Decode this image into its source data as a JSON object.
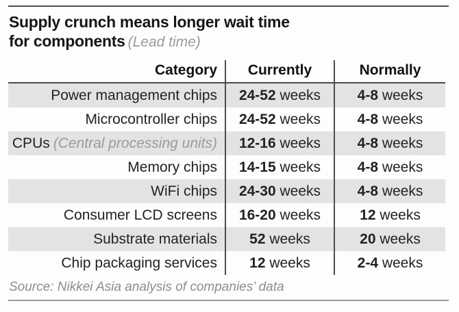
{
  "header": {
    "title_line1": "Supply crunch means longer wait time",
    "title_line2": "for components",
    "subtitle": "(Lead time)"
  },
  "table": {
    "columns": {
      "category": "Category",
      "currently": "Currently",
      "normally": "Normally"
    },
    "rows": [
      {
        "category": "Power management chips",
        "note": "",
        "currently": {
          "value": "24-52",
          "unit": "weeks"
        },
        "normally": {
          "value": "4-8",
          "unit": "weeks"
        }
      },
      {
        "category": "Microcontroller chips",
        "note": "",
        "currently": {
          "value": "24-52",
          "unit": "weeks"
        },
        "normally": {
          "value": "4-8",
          "unit": "weeks"
        }
      },
      {
        "category": "CPUs",
        "note": "(Central processing units)",
        "currently": {
          "value": "12-16",
          "unit": "weeks"
        },
        "normally": {
          "value": "4-8",
          "unit": "weeks"
        }
      },
      {
        "category": "Memory chips",
        "note": "",
        "currently": {
          "value": "14-15",
          "unit": "weeks"
        },
        "normally": {
          "value": "4-8",
          "unit": "weeks"
        }
      },
      {
        "category": "WiFi chips",
        "note": "",
        "currently": {
          "value": "24-30",
          "unit": "weeks"
        },
        "normally": {
          "value": "4-8",
          "unit": "weeks"
        }
      },
      {
        "category": "Consumer LCD screens",
        "note": "",
        "currently": {
          "value": "16-20",
          "unit": "weeks"
        },
        "normally": {
          "value": "12",
          "unit": "weeks"
        }
      },
      {
        "category": "Substrate materials",
        "note": "",
        "currently": {
          "value": "52",
          "unit": "weeks"
        },
        "normally": {
          "value": "20",
          "unit": "weeks"
        }
      },
      {
        "category": "Chip packaging services",
        "note": "",
        "currently": {
          "value": "12",
          "unit": "weeks"
        },
        "normally": {
          "value": "2-4",
          "unit": "weeks"
        }
      }
    ]
  },
  "footer": {
    "source": "Source: Nikkei Asia analysis of companies’ data"
  },
  "colors": {
    "row_shade": "#e3e3e3",
    "text_dark": "#1c1c1c",
    "text_muted": "#9a9a9a",
    "rule_dark": "#4c4c4c",
    "rule_light": "#9b9b9b"
  },
  "chart_data": {
    "type": "table",
    "title": "Supply crunch means longer wait time for components",
    "subtitle": "(Lead time)",
    "columns": [
      "Category",
      "Currently",
      "Normally"
    ],
    "rows": [
      [
        "Power management chips",
        "24-52 weeks",
        "4-8 weeks"
      ],
      [
        "Microcontroller chips",
        "24-52 weeks",
        "4-8 weeks"
      ],
      [
        "CPUs (Central processing units)",
        "12-16 weeks",
        "4-8 weeks"
      ],
      [
        "Memory chips",
        "14-15 weeks",
        "4-8 weeks"
      ],
      [
        "WiFi chips",
        "24-30 weeks",
        "4-8 weeks"
      ],
      [
        "Consumer LCD screens",
        "16-20 weeks",
        "12 weeks"
      ],
      [
        "Substrate materials",
        "52 weeks",
        "20 weeks"
      ],
      [
        "Chip packaging services",
        "12 weeks",
        "2-4 weeks"
      ]
    ],
    "layout": {
      "striped_rows": "odd rows shaded light gray",
      "category_align": "right",
      "value_align": "center"
    },
    "source": "Source: Nikkei Asia analysis of companies’ data"
  }
}
